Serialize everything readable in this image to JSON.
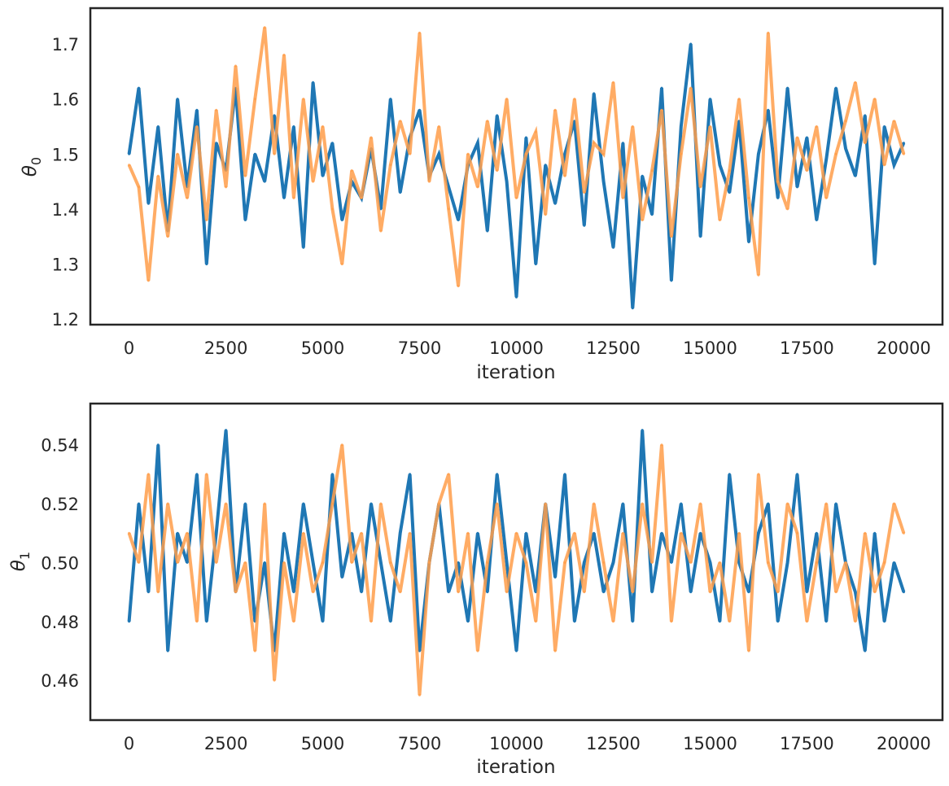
{
  "chart_data": [
    {
      "type": "line",
      "title": "",
      "xlabel": "iteration",
      "ylabel": "θ",
      "ylabel_subscript": "0",
      "xlim": [
        -1000,
        21000
      ],
      "ylim": [
        1.19,
        1.765
      ],
      "xticks": [
        0,
        2500,
        5000,
        7500,
        10000,
        12500,
        15000,
        17500,
        20000
      ],
      "xtick_labels": [
        "0",
        "2500",
        "5000",
        "7500",
        "10000",
        "12500",
        "15000",
        "17500",
        "20000"
      ],
      "yticks": [
        1.2,
        1.3,
        1.4,
        1.5,
        1.6,
        1.7
      ],
      "ytick_labels": [
        "1.2",
        "1.3",
        "1.4",
        "1.5",
        "1.6",
        "1.7"
      ],
      "grid": false,
      "legend": "none",
      "series": [
        {
          "color": "#1f77b4",
          "opacity": 1.0,
          "x": [
            0,
            250,
            500,
            750,
            1000,
            1250,
            1500,
            1750,
            2000,
            2250,
            2500,
            2750,
            3000,
            3250,
            3500,
            3750,
            4000,
            4250,
            4500,
            4750,
            5000,
            5250,
            5500,
            5750,
            6000,
            6250,
            6500,
            6750,
            7000,
            7250,
            7500,
            7750,
            8000,
            8250,
            8500,
            8750,
            9000,
            9250,
            9500,
            9750,
            10000,
            10250,
            10500,
            10750,
            11000,
            11250,
            11500,
            11750,
            12000,
            12250,
            12500,
            12750,
            13000,
            13250,
            13500,
            13750,
            14000,
            14250,
            14500,
            14750,
            15000,
            15250,
            15500,
            15750,
            16000,
            16250,
            16500,
            16750,
            17000,
            17250,
            17500,
            17750,
            18000,
            18250,
            18500,
            18750,
            19000,
            19250,
            19500,
            19750,
            20000
          ],
          "values": [
            1.5,
            1.62,
            1.41,
            1.55,
            1.36,
            1.6,
            1.44,
            1.58,
            1.3,
            1.52,
            1.47,
            1.62,
            1.38,
            1.5,
            1.45,
            1.57,
            1.42,
            1.55,
            1.33,
            1.63,
            1.46,
            1.52,
            1.38,
            1.45,
            1.42,
            1.51,
            1.4,
            1.6,
            1.43,
            1.53,
            1.58,
            1.46,
            1.5,
            1.44,
            1.38,
            1.48,
            1.52,
            1.36,
            1.57,
            1.45,
            1.24,
            1.53,
            1.3,
            1.48,
            1.41,
            1.5,
            1.56,
            1.37,
            1.61,
            1.45,
            1.33,
            1.52,
            1.22,
            1.46,
            1.39,
            1.62,
            1.27,
            1.55,
            1.7,
            1.35,
            1.6,
            1.48,
            1.43,
            1.56,
            1.34,
            1.5,
            1.58,
            1.42,
            1.62,
            1.44,
            1.53,
            1.38,
            1.49,
            1.62,
            1.51,
            1.46,
            1.57,
            1.3,
            1.55,
            1.48,
            1.52
          ]
        },
        {
          "color": "#ff9e4a",
          "opacity": 0.85,
          "x": [
            0,
            250,
            500,
            750,
            1000,
            1250,
            1500,
            1750,
            2000,
            2250,
            2500,
            2750,
            3000,
            3250,
            3500,
            3750,
            4000,
            4250,
            4500,
            4750,
            5000,
            5250,
            5500,
            5750,
            6000,
            6250,
            6500,
            6750,
            7000,
            7250,
            7500,
            7750,
            8000,
            8250,
            8500,
            8750,
            9000,
            9250,
            9500,
            9750,
            10000,
            10250,
            10500,
            10750,
            11000,
            11250,
            11500,
            11750,
            12000,
            12250,
            12500,
            12750,
            13000,
            13250,
            13500,
            13750,
            14000,
            14250,
            14500,
            14750,
            15000,
            15250,
            15500,
            15750,
            16000,
            16250,
            16500,
            16750,
            17000,
            17250,
            17500,
            17750,
            18000,
            18250,
            18500,
            18750,
            19000,
            19250,
            19500,
            19750,
            20000
          ],
          "values": [
            1.48,
            1.44,
            1.27,
            1.46,
            1.35,
            1.5,
            1.42,
            1.55,
            1.38,
            1.58,
            1.44,
            1.66,
            1.46,
            1.6,
            1.73,
            1.5,
            1.68,
            1.42,
            1.6,
            1.45,
            1.55,
            1.4,
            1.3,
            1.47,
            1.42,
            1.53,
            1.36,
            1.48,
            1.56,
            1.5,
            1.72,
            1.45,
            1.55,
            1.4,
            1.26,
            1.5,
            1.44,
            1.56,
            1.47,
            1.6,
            1.42,
            1.5,
            1.54,
            1.39,
            1.58,
            1.46,
            1.6,
            1.43,
            1.52,
            1.5,
            1.63,
            1.42,
            1.55,
            1.38,
            1.47,
            1.58,
            1.35,
            1.5,
            1.62,
            1.44,
            1.55,
            1.38,
            1.47,
            1.6,
            1.42,
            1.28,
            1.72,
            1.45,
            1.4,
            1.53,
            1.47,
            1.55,
            1.42,
            1.5,
            1.56,
            1.63,
            1.52,
            1.6,
            1.48,
            1.56,
            1.5
          ]
        }
      ]
    },
    {
      "type": "line",
      "title": "",
      "xlabel": "iteration",
      "ylabel": "θ",
      "ylabel_subscript": "1",
      "xlim": [
        -1000,
        21000
      ],
      "ylim": [
        0.4465,
        0.554
      ],
      "xticks": [
        0,
        2500,
        5000,
        7500,
        10000,
        12500,
        15000,
        17500,
        20000
      ],
      "xtick_labels": [
        "0",
        "2500",
        "5000",
        "7500",
        "10000",
        "12500",
        "15000",
        "17500",
        "20000"
      ],
      "yticks": [
        0.46,
        0.48,
        0.5,
        0.52,
        0.54
      ],
      "ytick_labels": [
        "0.46",
        "0.48",
        "0.50",
        "0.52",
        "0.54"
      ],
      "grid": false,
      "legend": "none",
      "series": [
        {
          "color": "#1f77b4",
          "opacity": 1.0,
          "x": [
            0,
            250,
            500,
            750,
            1000,
            1250,
            1500,
            1750,
            2000,
            2250,
            2500,
            2750,
            3000,
            3250,
            3500,
            3750,
            4000,
            4250,
            4500,
            4750,
            5000,
            5250,
            5500,
            5750,
            6000,
            6250,
            6500,
            6750,
            7000,
            7250,
            7500,
            7750,
            8000,
            8250,
            8500,
            8750,
            9000,
            9250,
            9500,
            9750,
            10000,
            10250,
            10500,
            10750,
            11000,
            11250,
            11500,
            11750,
            12000,
            12250,
            12500,
            12750,
            13000,
            13250,
            13500,
            13750,
            14000,
            14250,
            14500,
            14750,
            15000,
            15250,
            15500,
            15750,
            16000,
            16250,
            16500,
            16750,
            17000,
            17250,
            17500,
            17750,
            18000,
            18250,
            18500,
            18750,
            19000,
            19250,
            19500,
            19750,
            20000
          ],
          "values": [
            0.48,
            0.52,
            0.49,
            0.54,
            0.47,
            0.51,
            0.5,
            0.53,
            0.48,
            0.51,
            0.545,
            0.49,
            0.52,
            0.48,
            0.5,
            0.47,
            0.51,
            0.49,
            0.52,
            0.5,
            0.48,
            0.53,
            0.495,
            0.51,
            0.49,
            0.52,
            0.5,
            0.48,
            0.51,
            0.53,
            0.47,
            0.5,
            0.52,
            0.49,
            0.5,
            0.48,
            0.51,
            0.49,
            0.53,
            0.5,
            0.47,
            0.51,
            0.49,
            0.52,
            0.495,
            0.53,
            0.48,
            0.5,
            0.51,
            0.49,
            0.5,
            0.52,
            0.48,
            0.545,
            0.49,
            0.51,
            0.5,
            0.52,
            0.49,
            0.51,
            0.5,
            0.48,
            0.53,
            0.5,
            0.49,
            0.51,
            0.52,
            0.48,
            0.5,
            0.53,
            0.49,
            0.51,
            0.48,
            0.52,
            0.5,
            0.49,
            0.47,
            0.51,
            0.48,
            0.5,
            0.49
          ]
        },
        {
          "color": "#ff9e4a",
          "opacity": 0.85,
          "x": [
            0,
            250,
            500,
            750,
            1000,
            1250,
            1500,
            1750,
            2000,
            2250,
            2500,
            2750,
            3000,
            3250,
            3500,
            3750,
            4000,
            4250,
            4500,
            4750,
            5000,
            5250,
            5500,
            5750,
            6000,
            6250,
            6500,
            6750,
            7000,
            7250,
            7500,
            7750,
            8000,
            8250,
            8500,
            8750,
            9000,
            9250,
            9500,
            9750,
            10000,
            10250,
            10500,
            10750,
            11000,
            11250,
            11500,
            11750,
            12000,
            12250,
            12500,
            12750,
            13000,
            13250,
            13500,
            13750,
            14000,
            14250,
            14500,
            14750,
            15000,
            15250,
            15500,
            15750,
            16000,
            16250,
            16500,
            16750,
            17000,
            17250,
            17500,
            17750,
            18000,
            18250,
            18500,
            18750,
            19000,
            19250,
            19500,
            19750,
            20000
          ],
          "values": [
            0.51,
            0.5,
            0.53,
            0.49,
            0.52,
            0.5,
            0.51,
            0.48,
            0.53,
            0.5,
            0.52,
            0.49,
            0.5,
            0.47,
            0.52,
            0.46,
            0.5,
            0.48,
            0.51,
            0.49,
            0.5,
            0.52,
            0.54,
            0.5,
            0.51,
            0.48,
            0.52,
            0.5,
            0.49,
            0.51,
            0.455,
            0.5,
            0.52,
            0.53,
            0.49,
            0.51,
            0.47,
            0.5,
            0.52,
            0.49,
            0.51,
            0.5,
            0.48,
            0.52,
            0.47,
            0.5,
            0.51,
            0.49,
            0.52,
            0.5,
            0.48,
            0.51,
            0.49,
            0.52,
            0.5,
            0.54,
            0.48,
            0.51,
            0.5,
            0.52,
            0.49,
            0.5,
            0.48,
            0.51,
            0.47,
            0.53,
            0.5,
            0.49,
            0.52,
            0.51,
            0.48,
            0.5,
            0.52,
            0.49,
            0.5,
            0.48,
            0.51,
            0.49,
            0.5,
            0.52,
            0.51
          ]
        }
      ]
    }
  ]
}
